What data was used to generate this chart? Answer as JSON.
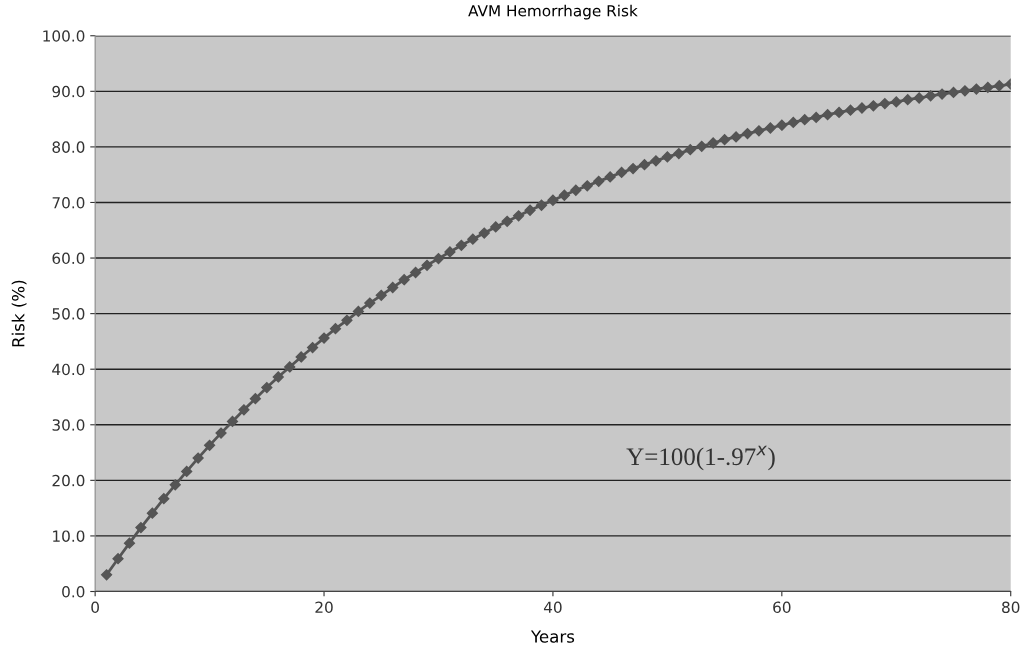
{
  "chart_data": {
    "type": "line",
    "title": "AVM Hemorrhage Risk",
    "xlabel": "Years",
    "ylabel": "Risk (%)",
    "annotations": [
      "Y=100(1-.97$^{x}$)"
    ],
    "x": [
      1,
      2,
      3,
      4,
      5,
      6,
      7,
      8,
      9,
      10,
      11,
      12,
      13,
      14,
      15,
      16,
      17,
      18,
      19,
      20,
      21,
      22,
      23,
      24,
      25,
      26,
      27,
      28,
      29,
      30,
      31,
      32,
      33,
      34,
      35,
      36,
      37,
      38,
      39,
      40,
      41,
      42,
      43,
      44,
      45,
      46,
      47,
      48,
      49,
      50,
      51,
      52,
      53,
      54,
      55,
      56,
      57,
      58,
      59,
      60,
      61,
      62,
      63,
      64,
      65,
      66,
      67,
      68,
      69,
      70,
      71,
      72,
      73,
      74,
      75,
      76,
      77,
      78,
      79,
      80
    ],
    "series": [
      {
        "color": "#555555",
        "values": [
          3.0,
          5.9,
          8.7,
          11.5,
          14.1,
          16.7,
          19.2,
          21.6,
          24.0,
          26.3,
          28.5,
          30.6,
          32.7,
          34.7,
          36.7,
          38.6,
          40.4,
          42.2,
          43.9,
          45.6,
          47.3,
          48.8,
          50.4,
          51.9,
          53.3,
          54.7,
          56.1,
          57.4,
          58.7,
          59.9,
          61.1,
          62.3,
          63.4,
          64.5,
          65.6,
          66.6,
          67.6,
          68.6,
          69.5,
          70.4,
          71.3,
          72.2,
          73.0,
          73.8,
          74.6,
          75.4,
          76.1,
          76.8,
          77.5,
          78.2,
          78.8,
          79.5,
          80.1,
          80.7,
          81.3,
          81.8,
          82.4,
          82.9,
          83.4,
          83.9,
          84.4,
          84.9,
          85.3,
          85.8,
          86.2,
          86.6,
          87.0,
          87.4,
          87.8,
          88.1,
          88.5,
          88.8,
          89.2,
          89.5,
          89.8,
          90.1,
          90.4,
          90.7,
          91.0,
          91.3
        ]
      }
    ],
    "xlim": [
      0,
      80
    ],
    "ylim": [
      0,
      100
    ],
    "xticks": [
      0,
      20,
      40,
      60,
      80
    ],
    "yticks": [
      {
        "value": 0,
        "label": "0.0"
      },
      {
        "value": 10,
        "label": "10.0"
      },
      {
        "value": 20,
        "label": "20.0"
      },
      {
        "value": 30,
        "label": "30.0"
      },
      {
        "value": 40,
        "label": "40.0"
      },
      {
        "value": 50,
        "label": "50.0"
      },
      {
        "value": 60,
        "label": "60.0"
      },
      {
        "value": 70,
        "label": "70.0"
      },
      {
        "value": 80,
        "label": "80.0"
      },
      {
        "value": 90,
        "label": "90.0"
      },
      {
        "value": 100,
        "label": "100.0"
      }
    ],
    "grid": "y",
    "marker": "diamond",
    "line_style": "solid"
  }
}
